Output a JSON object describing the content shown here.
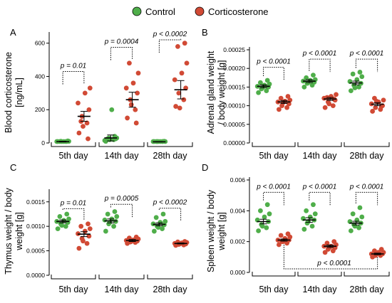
{
  "legend": {
    "items": [
      {
        "label": "Control",
        "color": "#4fae4a"
      },
      {
        "label": "Corticosterone",
        "color": "#d14a35"
      }
    ]
  },
  "chart_data": [
    {
      "panel": "A",
      "type": "scatter",
      "ylabel_lines": [
        "Blood corticosterone",
        "[ng/mL]"
      ],
      "yticks": [
        "0",
        "200",
        "400",
        "600"
      ],
      "ylim": [
        0,
        650
      ],
      "categories": [
        "5th day",
        "14th day",
        "28th day"
      ],
      "series": [
        {
          "name": "Control",
          "color": "#4fae4a",
          "groups": [
            [
              5,
              8,
              10,
              12,
              5,
              8,
              10,
              6,
              9,
              7
            ],
            [
              10,
              20,
              30,
              25,
              15,
              200,
              30,
              25,
              40,
              20
            ],
            [
              5,
              8,
              6,
              10,
              7,
              5,
              8,
              6,
              9,
              7
            ]
          ],
          "mean": [
            8,
            30,
            7
          ],
          "sem": [
            2,
            18,
            1
          ]
        },
        {
          "name": "Corticosterone",
          "color": "#d14a35",
          "groups": [
            [
              60,
              120,
              160,
              200,
              240,
              300,
              330,
              130,
              25,
              100
            ],
            [
              150,
              200,
              260,
              300,
              330,
              360,
              420,
              480,
              120,
              230
            ],
            [
              220,
              260,
              300,
              330,
              380,
              420,
              480,
              580,
              600,
              210
            ]
          ],
          "mean": [
            160,
            260,
            320
          ],
          "sem": [
            30,
            45,
            55
          ]
        }
      ],
      "comparisons": [
        {
          "label": "p = 0.01",
          "level": 430
        },
        {
          "label": "p = 0.0004",
          "level": 575
        },
        {
          "label": "p < 0.0002",
          "level": 620
        }
      ]
    },
    {
      "panel": "B",
      "type": "scatter",
      "ylabel_lines": [
        "Adrenal gland weight",
        "/ body weight [g]"
      ],
      "yticks": [
        "0.00000",
        "0.00005",
        "0.00010",
        "0.00015",
        "0.00020",
        "0.00025"
      ],
      "ylim": [
        0,
        0.00025
      ],
      "categories": [
        "5th day",
        "14th day",
        "28th day"
      ],
      "series": [
        {
          "name": "Control",
          "color": "#4fae4a",
          "groups": [
            [
              0.000135,
              0.00014,
              0.000145,
              0.00015,
              0.000152,
              0.000155,
              0.000158,
              0.000162,
              0.000168,
              0.000148
            ],
            [
              0.00015,
              0.000155,
              0.00016,
              0.000163,
              0.000166,
              0.000168,
              0.00017,
              0.000175,
              0.000182,
              0.000162
            ],
            [
              0.00014,
              0.00015,
              0.000155,
              0.00016,
              0.000165,
              0.00017,
              0.000178,
              0.000185,
              0.00019,
              0.000148
            ]
          ],
          "mean": [
            0.000152,
            0.000166,
            0.000161
          ],
          "sem": [
            4e-06,
            4e-06,
            5e-06
          ]
        },
        {
          "name": "Corticosterone",
          "color": "#d14a35",
          "groups": [
            [
              9e-05,
              9.5e-05,
              0.0001,
              0.000105,
              0.00011,
              0.000112,
              0.000115,
              0.00012,
              0.000125,
              0.000108
            ],
            [
              9.5e-05,
              0.0001,
              0.00011,
              0.000115,
              0.00012,
              0.000125,
              0.00013,
              0.000122,
              0.000118,
              0.000105
            ],
            [
              8.5e-05,
              9e-05,
              9.5e-05,
              0.0001,
              0.000105,
              0.00011,
              0.000115,
              0.00012,
              9.8e-05,
              0.000112
            ]
          ],
          "mean": [
            0.00011,
            0.000118,
            0.000104
          ],
          "sem": [
            4e-06,
            4e-06,
            4e-06
          ]
        }
      ],
      "comparisons": [
        {
          "label": "p < 0.0001",
          "level": 0.000203
        },
        {
          "label": "p < 0.0001",
          "level": 0.000225
        },
        {
          "label": "p < 0.0001",
          "level": 0.000225
        }
      ]
    },
    {
      "panel": "C",
      "type": "scatter",
      "ylabel_lines": [
        "Thymus weight / body",
        "weight [g]"
      ],
      "yticks": [
        "0.0000",
        "0.0005",
        "0.0010",
        "0.0015"
      ],
      "ylim": [
        0,
        0.0017
      ],
      "categories": [
        "5th day",
        "14th day",
        "28th day"
      ],
      "series": [
        {
          "name": "Control",
          "color": "#4fae4a",
          "groups": [
            [
              0.00095,
              0.001,
              0.00105,
              0.00108,
              0.0011,
              0.00112,
              0.00115,
              0.0012,
              0.00125,
              0.00102
            ],
            [
              0.0009,
              0.001,
              0.00105,
              0.0011,
              0.00113,
              0.00115,
              0.0012,
              0.00125,
              0.0013,
              0.00108
            ],
            [
              0.0009,
              0.00095,
              0.001,
              0.00103,
              0.00105,
              0.00108,
              0.0011,
              0.00118,
              0.00125,
              0.00098
            ]
          ],
          "mean": [
            0.0011,
            0.00111,
            0.00104
          ],
          "sem": [
            3e-05,
            4e-05,
            3e-05
          ]
        },
        {
          "name": "Corticosterone",
          "color": "#d14a35",
          "groups": [
            [
              0.00055,
              0.00065,
              0.00075,
              0.0008,
              0.00085,
              0.0009,
              0.00095,
              0.001,
              0.00105,
              0.0007
            ],
            [
              0.00065,
              0.00067,
              0.00068,
              0.0007,
              0.00071,
              0.00072,
              0.00074,
              0.00076,
              0.00078,
              0.00069
            ],
            [
              0.00061,
              0.00062,
              0.00063,
              0.00064,
              0.00065,
              0.00066,
              0.00067,
              0.00068,
              0.00069,
              0.00064
            ]
          ],
          "mean": [
            0.00084,
            0.00071,
            0.00065
          ],
          "sem": [
            5e-05,
            2e-05,
            1e-05
          ]
        }
      ],
      "comparisons": [
        {
          "label": "p = 0.01",
          "level": 0.00136
        },
        {
          "label": "p = 0.0005",
          "level": 0.00145
        },
        {
          "label": "p < 0.0002",
          "level": 0.00137
        }
      ]
    },
    {
      "panel": "D",
      "type": "scatter",
      "ylabel_lines": [
        "Spleen weight / body",
        "weight [g]"
      ],
      "yticks": [
        "0.000",
        "0.002",
        "0.004",
        "0.006"
      ],
      "ylim": [
        0,
        0.006
      ],
      "categories": [
        "5th day",
        "14th day",
        "28th day"
      ],
      "series": [
        {
          "name": "Control",
          "color": "#4fae4a",
          "groups": [
            [
              0.0027,
              0.0029,
              0.0031,
              0.0033,
              0.0034,
              0.0036,
              0.0038,
              0.004,
              0.0044,
              0.003
            ],
            [
              0.0028,
              0.003,
              0.0032,
              0.0034,
              0.0035,
              0.0036,
              0.0038,
              0.004,
              0.0044,
              0.0033
            ],
            [
              0.0027,
              0.0029,
              0.0031,
              0.0032,
              0.0033,
              0.0034,
              0.0036,
              0.0038,
              0.0042,
              0.003
            ]
          ],
          "mean": [
            0.0033,
            0.0034,
            0.0032
          ],
          "sem": [
            0.00015,
            0.00015,
            0.00012
          ]
        },
        {
          "name": "Corticosterone",
          "color": "#d14a35",
          "groups": [
            [
              0.0018,
              0.0019,
              0.002,
              0.0021,
              0.0021,
              0.0022,
              0.0023,
              0.0024,
              0.0025,
              0.002
            ],
            [
              0.0013,
              0.0014,
              0.0015,
              0.0016,
              0.0017,
              0.0017,
              0.0018,
              0.0019,
              0.002,
              0.0016
            ],
            [
              0.001,
              0.0011,
              0.0011,
              0.0012,
              0.0012,
              0.0013,
              0.0013,
              0.0014,
              0.0015,
              0.0012
            ]
          ],
          "mean": [
            0.0021,
            0.0017,
            0.0012
          ],
          "sem": [
            7e-05,
            8e-05,
            5e-05
          ]
        }
      ],
      "comparisons": [
        {
          "label": "p < 0.0001",
          "level": 0.0052
        },
        {
          "label": "p < 0.0001",
          "level": 0.0052
        },
        {
          "label": "p < 0.0001",
          "level": 0.0052
        }
      ],
      "extra_comparison": {
        "label": "p < 0.0001",
        "from_group": 0,
        "to_group": 2
      }
    }
  ]
}
